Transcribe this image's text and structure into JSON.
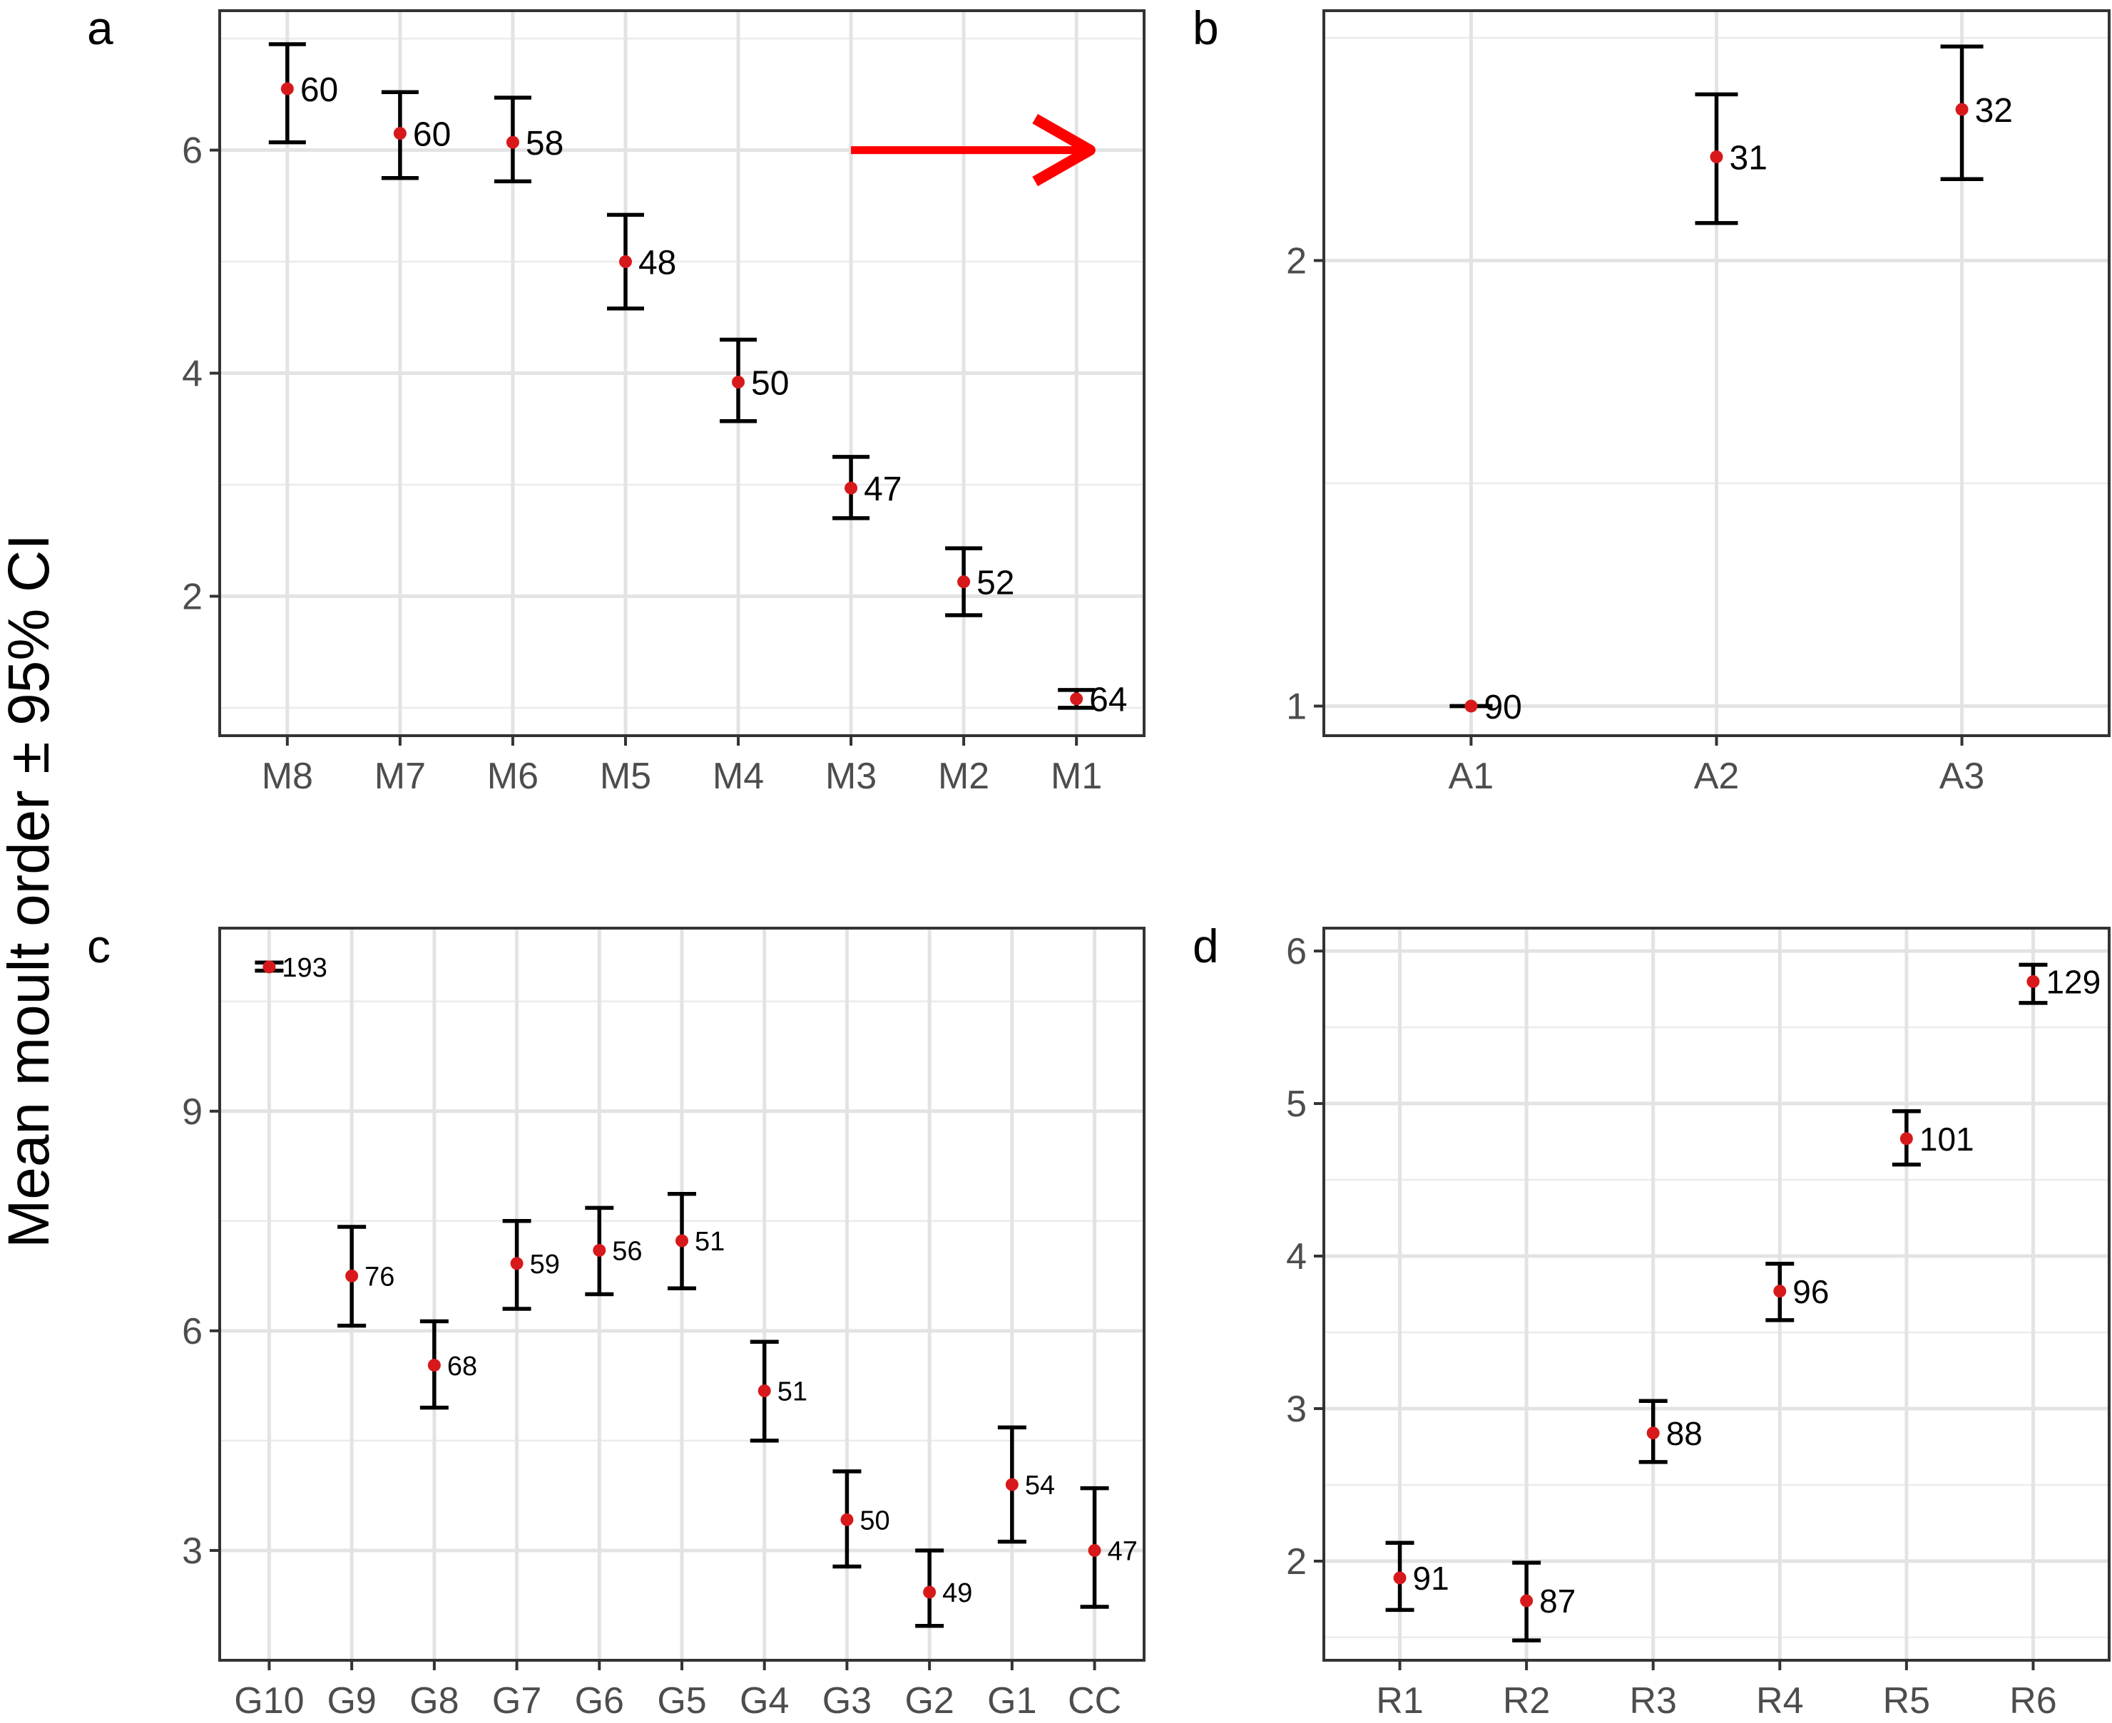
{
  "figure": {
    "ylabel": "Mean moult order ± 95% CI",
    "panel_labels": [
      "a",
      "b",
      "c",
      "d"
    ],
    "point_color": "#d7191c",
    "arrow_color": "#ff0000"
  },
  "chart_data": [
    {
      "panel": "a",
      "type": "scatter",
      "error_bars": true,
      "categories": [
        "M8",
        "M7",
        "M6",
        "M5",
        "M4",
        "M3",
        "M2",
        "M1"
      ],
      "mean": [
        6.55,
        6.15,
        6.07,
        5.0,
        3.92,
        2.97,
        2.13,
        1.08
      ],
      "ci_low": [
        6.07,
        5.75,
        5.72,
        4.58,
        3.57,
        2.7,
        1.83,
        1.0
      ],
      "ci_high": [
        6.95,
        6.52,
        6.47,
        5.42,
        4.3,
        3.25,
        2.43,
        1.16
      ],
      "n_labels": [
        "60",
        "60",
        "58",
        "48",
        "50",
        "47",
        "52",
        "64"
      ],
      "yticks": [
        2,
        4,
        6
      ],
      "ylim": [
        0.75,
        7.25
      ],
      "grid": true,
      "arrow": {
        "from": "M3",
        "to": "M1",
        "y": 6.0
      }
    },
    {
      "panel": "b",
      "type": "scatter",
      "error_bars": true,
      "log_y": true,
      "categories": [
        "A1",
        "A2",
        "A3"
      ],
      "mean": [
        1.0,
        2.35,
        2.53
      ],
      "ci_low": [
        1.0,
        2.12,
        2.27
      ],
      "ci_high": [
        1.0,
        2.59,
        2.79
      ],
      "n_labels": [
        "90",
        "31",
        "32"
      ],
      "yticks": [
        1,
        2
      ],
      "ylim": [
        0.955,
        2.95
      ],
      "grid": true
    },
    {
      "panel": "c",
      "type": "scatter",
      "error_bars": true,
      "categories": [
        "G10",
        "G9",
        "G8",
        "G7",
        "G6",
        "G5",
        "G4",
        "G3",
        "G2",
        "G1",
        "CC"
      ],
      "mean": [
        10.97,
        6.75,
        5.53,
        6.92,
        7.1,
        7.23,
        5.18,
        3.42,
        2.43,
        3.9,
        3.0
      ],
      "ci_low": [
        10.92,
        6.07,
        4.95,
        6.3,
        6.5,
        6.58,
        4.5,
        2.78,
        1.97,
        3.12,
        2.23
      ],
      "ci_high": [
        11.03,
        7.42,
        6.13,
        7.5,
        7.68,
        7.87,
        5.85,
        4.08,
        3.0,
        4.68,
        3.85
      ],
      "n_labels": [
        "193",
        "76",
        "68",
        "59",
        "56",
        "51",
        "51",
        "50",
        "49",
        "54",
        "47"
      ],
      "yticks": [
        3,
        6,
        9
      ],
      "ylim": [
        1.5,
        11.5
      ],
      "grid": true
    },
    {
      "panel": "d",
      "type": "scatter",
      "error_bars": true,
      "categories": [
        "R1",
        "R2",
        "R3",
        "R4",
        "R5",
        "R6"
      ],
      "mean": [
        1.89,
        1.74,
        2.84,
        3.77,
        4.77,
        5.8
      ],
      "ci_low": [
        1.68,
        1.48,
        2.65,
        3.58,
        4.6,
        5.66
      ],
      "ci_high": [
        2.12,
        1.99,
        3.05,
        3.95,
        4.95,
        5.91
      ],
      "n_labels": [
        "91",
        "87",
        "88",
        "96",
        "101",
        "129"
      ],
      "yticks": [
        2,
        3,
        4,
        5,
        6
      ],
      "ylim": [
        1.35,
        6.15
      ],
      "grid": true
    }
  ]
}
